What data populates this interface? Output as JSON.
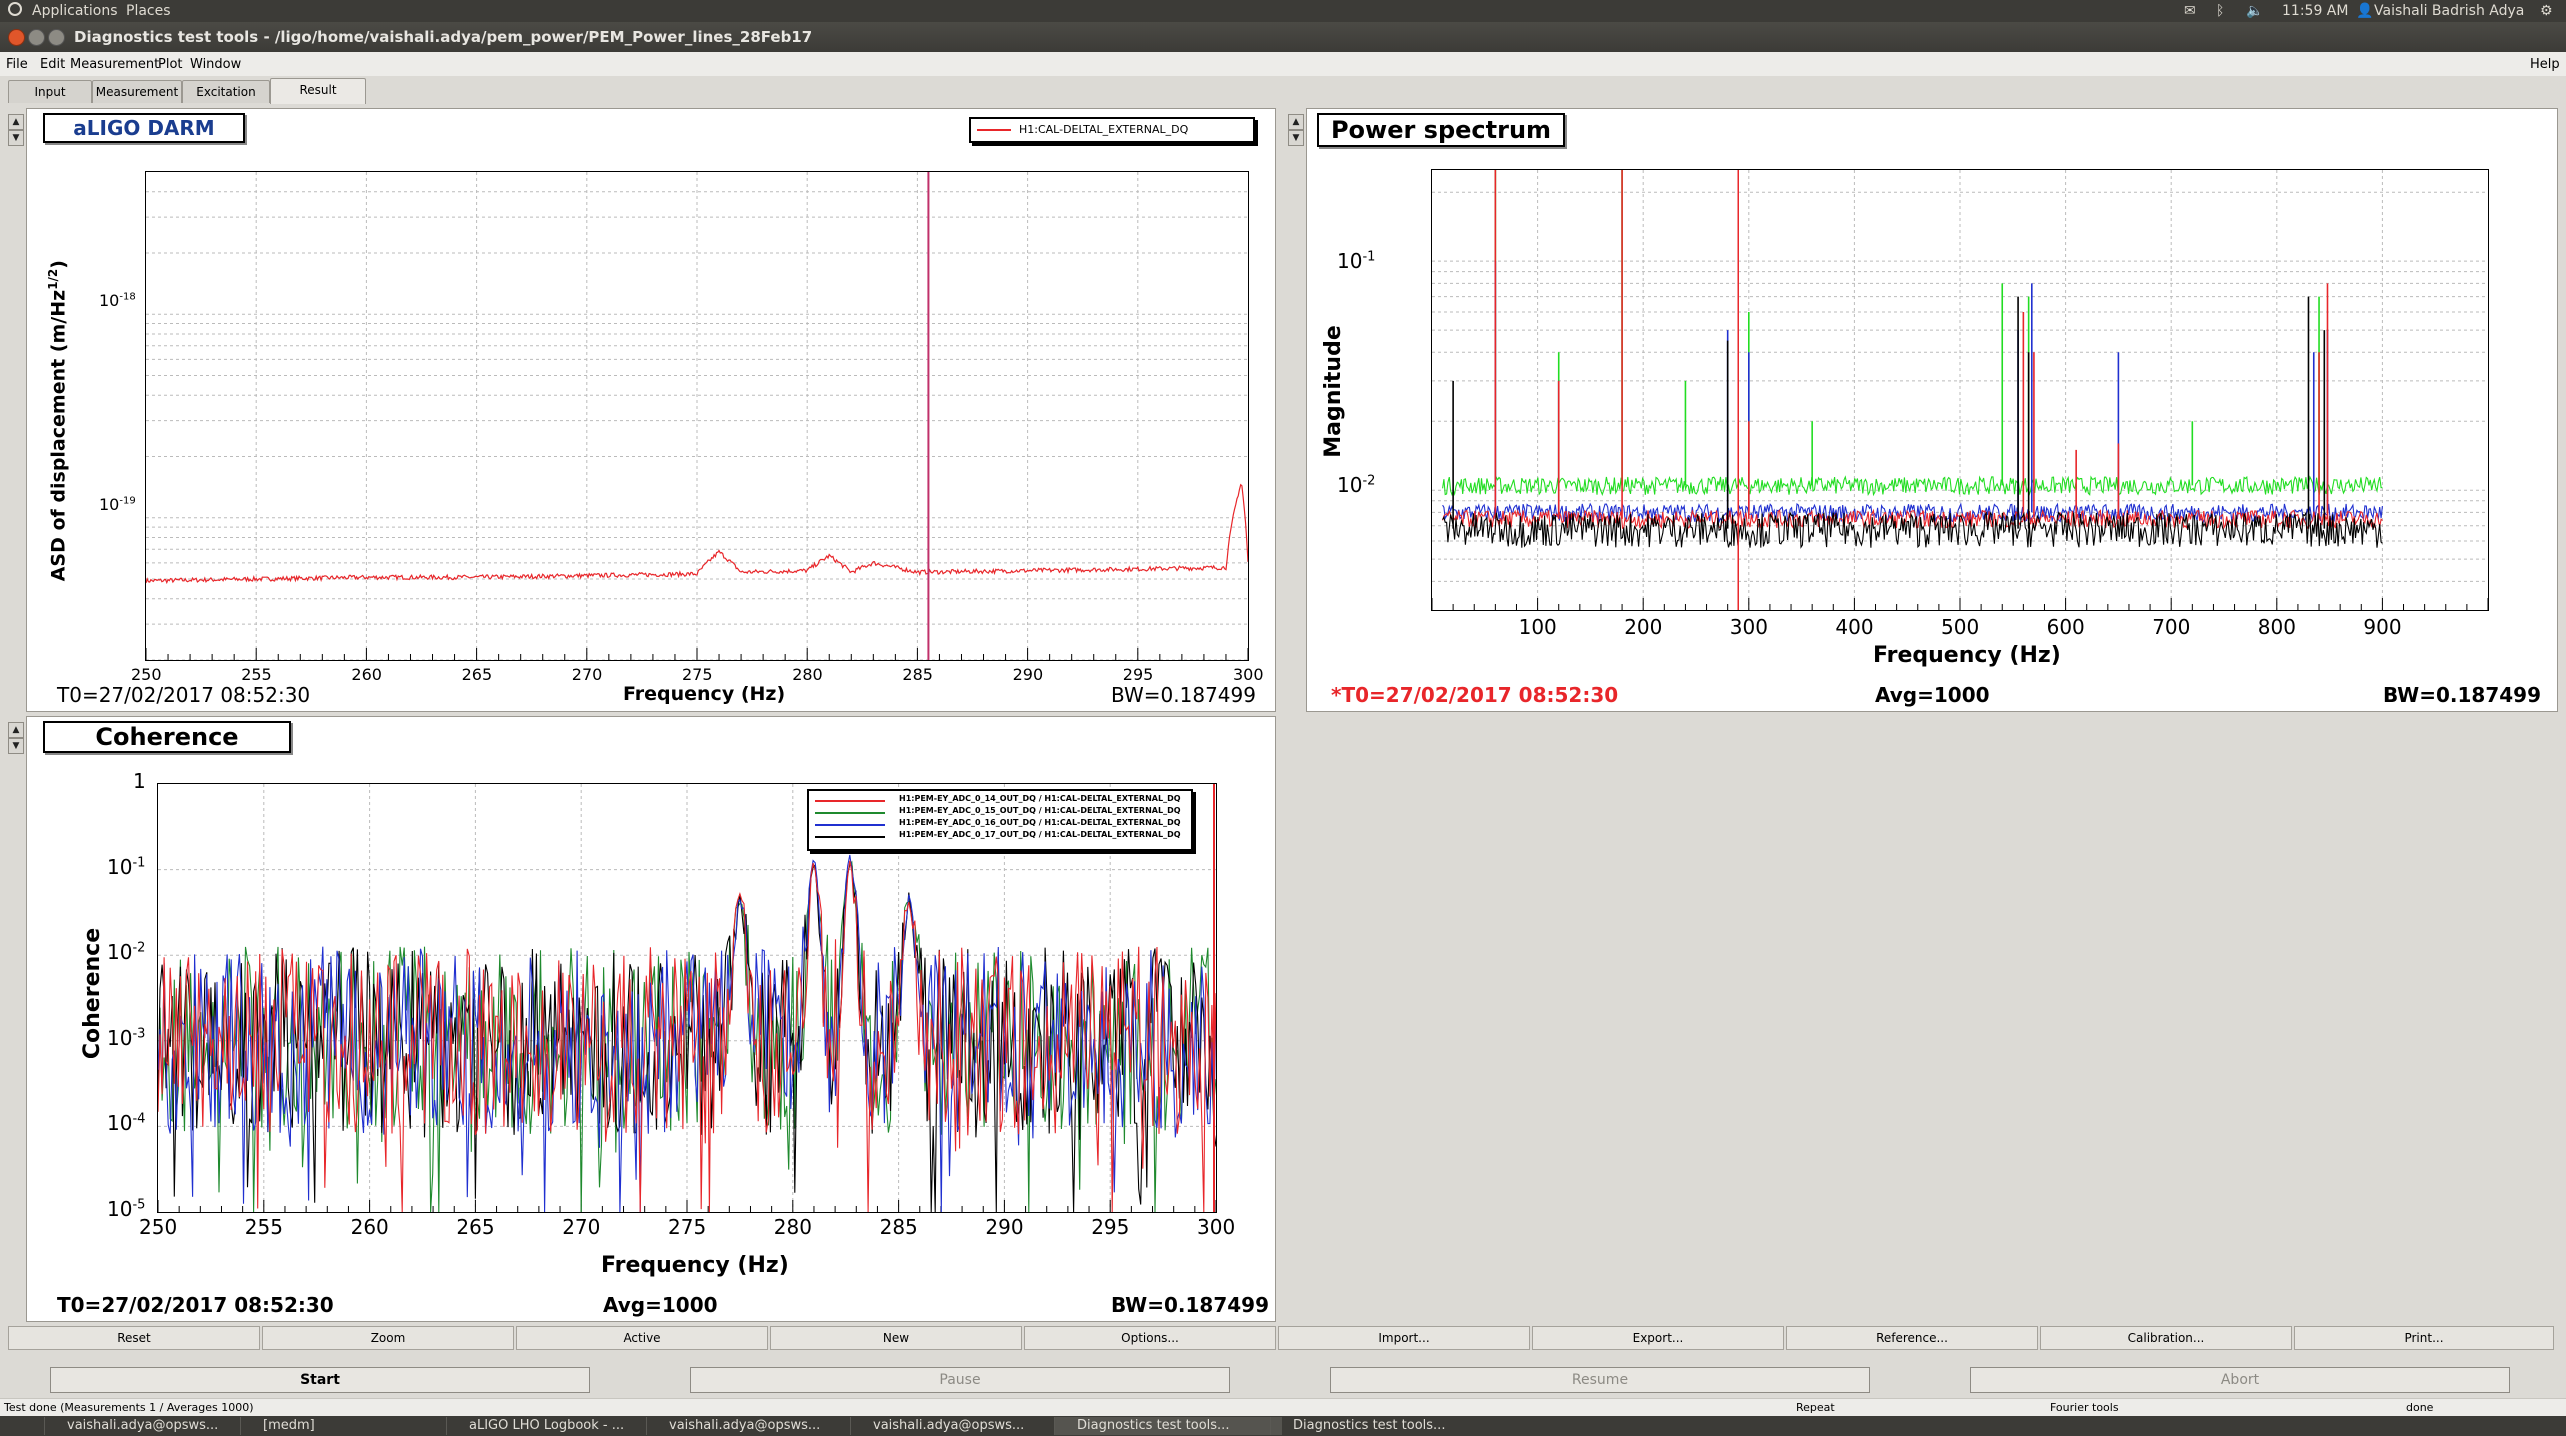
{
  "system_bar": {
    "applications": "Applications",
    "places": "Places",
    "clock": "11:59 AM",
    "user": "Vaishali Badrish Adya"
  },
  "window": {
    "title": "Diagnostics test tools - /ligo/home/vaishali.adya/pem_power/PEM_Power_lines_28Feb17"
  },
  "menu": {
    "file": "File",
    "edit": "Edit",
    "measurement": "Measurement",
    "plot": "Plot",
    "window": "Window",
    "help": "Help"
  },
  "tabs": [
    "Input",
    "Measurement",
    "Excitation",
    "Result"
  ],
  "panels": {
    "darm": {
      "title": "aLIGO DARM",
      "legend": "H1:CAL-DELTAL_EXTERNAL_DQ",
      "xlabel": "Frequency (Hz)",
      "ylabel": "ASD of displacement (m/Hz^1/2)",
      "ytick_top": "10^-18",
      "ytick_bottom": "10^-19",
      "xticks": [
        "250",
        "255",
        "260",
        "265",
        "270",
        "275",
        "280",
        "285",
        "290",
        "295",
        "300"
      ],
      "t0": "T0=27/02/2017 08:52:30",
      "bw": "BW=0.187499"
    },
    "power": {
      "title": "Power spectrum",
      "xlabel": "Frequency (Hz)",
      "ylabel": "Magnitude",
      "ytick_top": "10^-1",
      "ytick_bottom": "10^-2",
      "xticks": [
        "100",
        "200",
        "300",
        "400",
        "500",
        "600",
        "700",
        "800",
        "900"
      ],
      "t0": "*T0=27/02/2017 08:52:30",
      "avg": "Avg=1000",
      "bw": "BW=0.187499"
    },
    "coherence": {
      "title": "Coherence",
      "xlabel": "Frequency (Hz)",
      "ylabel": "Coherence",
      "yticks": [
        "1",
        "10^-1",
        "10^-2",
        "10^-3",
        "10^-4",
        "10^-5"
      ],
      "xticks": [
        "250",
        "255",
        "260",
        "265",
        "270",
        "275",
        "280",
        "285",
        "290",
        "295",
        "300"
      ],
      "legend": [
        {
          "name": "H1:PEM-EY_ADC_0_14_OUT_DQ / H1:CAL-DELTAL_EXTERNAL_DQ",
          "color": "#e8262a"
        },
        {
          "name": "H1:PEM-EY_ADC_0_15_OUT_DQ / H1:CAL-DELTAL_EXTERNAL_DQ",
          "color": "#1f8a2e"
        },
        {
          "name": "H1:PEM-EY_ADC_0_16_OUT_DQ / H1:CAL-DELTAL_EXTERNAL_DQ",
          "color": "#2030d0"
        },
        {
          "name": "H1:PEM-EY_ADC_0_17_OUT_DQ / H1:CAL-DELTAL_EXTERNAL_DQ",
          "color": "#000000"
        }
      ],
      "t0": "T0=27/02/2017 08:52:30",
      "avg": "Avg=1000",
      "bw": "BW=0.187499"
    }
  },
  "toolbar": [
    "Reset",
    "Zoom",
    "Active",
    "New",
    "Options...",
    "Import...",
    "Export...",
    "Reference...",
    "Calibration...",
    "Print..."
  ],
  "controls": [
    "Start",
    "Pause",
    "Resume",
    "Abort"
  ],
  "status": {
    "message": "Test done (Measurements 1 / Averages 1000)",
    "repeat": "Repeat",
    "fourier": "Fourier tools",
    "done": "done"
  },
  "taskbar": [
    "vaishali.adya@opsws...",
    "[medm]",
    "aLIGO LHO Logbook - ...",
    "vaishali.adya@opsws...",
    "vaishali.adya@opsws...",
    "Diagnostics test tools...",
    "Diagnostics test tools..."
  ],
  "colors": {
    "red": "#e8262a",
    "green": "#22dd22",
    "blue": "#2030d0",
    "black": "#000000",
    "cursor": "#c0306a"
  },
  "chart_data": [
    {
      "name": "aLIGO DARM",
      "type": "line",
      "x_range": [
        250,
        300
      ],
      "y_scale": "log",
      "y_range": [
        2e-20,
        5e-18
      ],
      "series": [
        {
          "name": "H1:CAL-DELTAL_EXTERNAL_DQ",
          "x": [
            250,
            255,
            260,
            265,
            270,
            275,
            276,
            277,
            280,
            281,
            282,
            283,
            285,
            290,
            295,
            299,
            299.7,
            300
          ],
          "y": [
            4.9e-20,
            5e-20,
            5.1e-20,
            5.1e-20,
            5.2e-20,
            5.3e-20,
            6.8e-20,
            5.4e-20,
            5.5e-20,
            6.5e-20,
            5.4e-20,
            6e-20,
            5.4e-20,
            5.5e-20,
            5.6e-20,
            5.7e-20,
            1.5e-19,
            6e-20
          ]
        }
      ],
      "cursor_x": 285.5
    },
    {
      "name": "Power spectrum",
      "type": "line",
      "x_range": [
        0,
        1000
      ],
      "y_scale": "log",
      "y_range": [
        0.003,
        0.25
      ],
      "series": [
        {
          "name": "green",
          "baseline": 0.0105
        },
        {
          "name": "blue",
          "baseline": 0.008
        },
        {
          "name": "red",
          "baseline": 0.0075
        },
        {
          "name": "black",
          "baseline": 0.0068
        }
      ],
      "cursor_x": 290
    },
    {
      "name": "Coherence",
      "type": "line",
      "x_range": [
        250,
        300
      ],
      "y_scale": "log",
      "y_range": [
        1e-05,
        1
      ],
      "peaks": [
        {
          "x": 277.5,
          "y": 0.04
        },
        {
          "x": 281,
          "y": 0.12
        },
        {
          "x": 282.7,
          "y": 0.12
        },
        {
          "x": 285.5,
          "y": 0.04
        }
      ]
    }
  ]
}
